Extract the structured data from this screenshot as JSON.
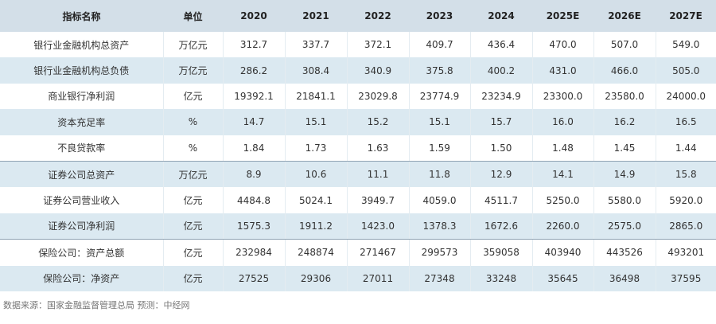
{
  "table": {
    "header": [
      "指标名称",
      "单位",
      "2020",
      "2021",
      "2022",
      "2023",
      "2024",
      "2025E",
      "2026E",
      "2027E"
    ],
    "rows": [
      [
        "银行业金融机构总资产",
        "万亿元",
        "312.7",
        "337.7",
        "372.1",
        "409.7",
        "436.4",
        "470.0",
        "507.0",
        "549.0"
      ],
      [
        "银行业金融机构总负债",
        "万亿元",
        "286.2",
        "308.4",
        "340.9",
        "375.8",
        "400.2",
        "431.0",
        "466.0",
        "505.0"
      ],
      [
        "商业银行净利润",
        "亿元",
        "19392.1",
        "21841.1",
        "23029.8",
        "23774.9",
        "23234.9",
        "23300.0",
        "23580.0",
        "24000.0"
      ],
      [
        "资本充足率",
        "%",
        "14.7",
        "15.1",
        "15.2",
        "15.1",
        "15.7",
        "16.0",
        "16.2",
        "16.5"
      ],
      [
        "不良贷款率",
        "%",
        "1.84",
        "1.73",
        "1.63",
        "1.59",
        "1.50",
        "1.48",
        "1.45",
        "1.44"
      ],
      [
        "证券公司总资产",
        "万亿元",
        "8.9",
        "10.6",
        "11.1",
        "11.8",
        "12.9",
        "14.1",
        "14.9",
        "15.8"
      ],
      [
        "证券公司营业收入",
        "亿元",
        "4484.8",
        "5024.1",
        "3949.7",
        "4059.0",
        "4511.7",
        "5250.0",
        "5580.0",
        "5920.0"
      ],
      [
        "证券公司净利润",
        "亿元",
        "1575.3",
        "1911.2",
        "1423.0",
        "1378.3",
        "1672.6",
        "2260.0",
        "2575.0",
        "2865.0"
      ],
      [
        "保险公司：资产总额",
        "亿元",
        "232984",
        "248874",
        "271467",
        "299573",
        "359058",
        "403940",
        "443526",
        "493201"
      ],
      [
        "保险公司：净资产",
        "亿元",
        "27525",
        "29306",
        "27011",
        "27348",
        "33248",
        "35645",
        "36498",
        "37595"
      ]
    ]
  },
  "footer": "数据来源：国家金融监督管理总局   预测：中经网"
}
